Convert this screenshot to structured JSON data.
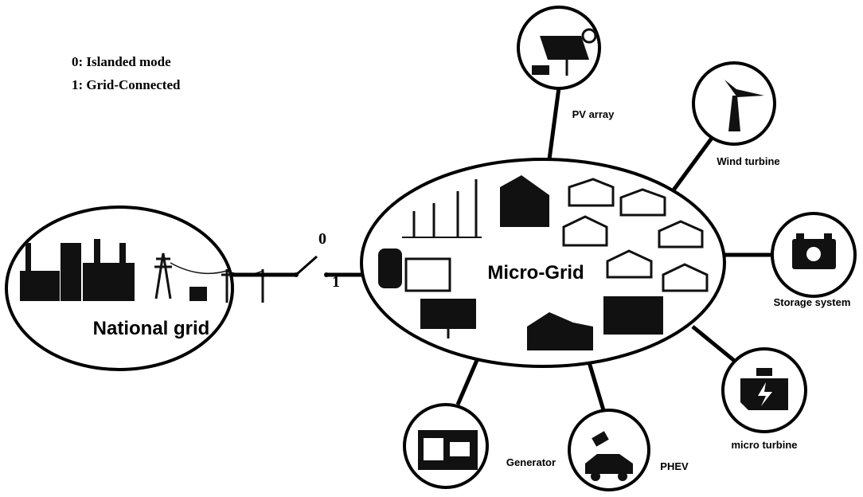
{
  "legend": [
    "0: Islanded mode",
    "1: Grid-Connected"
  ],
  "switch": {
    "open": "0",
    "closed": "1"
  },
  "national_grid": {
    "label": "National grid"
  },
  "micro_grid": {
    "label": "Micro-Grid"
  },
  "nodes": [
    {
      "label": "PV array"
    },
    {
      "label": "Wind turbine"
    },
    {
      "label": "Storage system"
    },
    {
      "label": "micro turbine"
    },
    {
      "label": "PHEV"
    },
    {
      "label": "Generator"
    }
  ]
}
